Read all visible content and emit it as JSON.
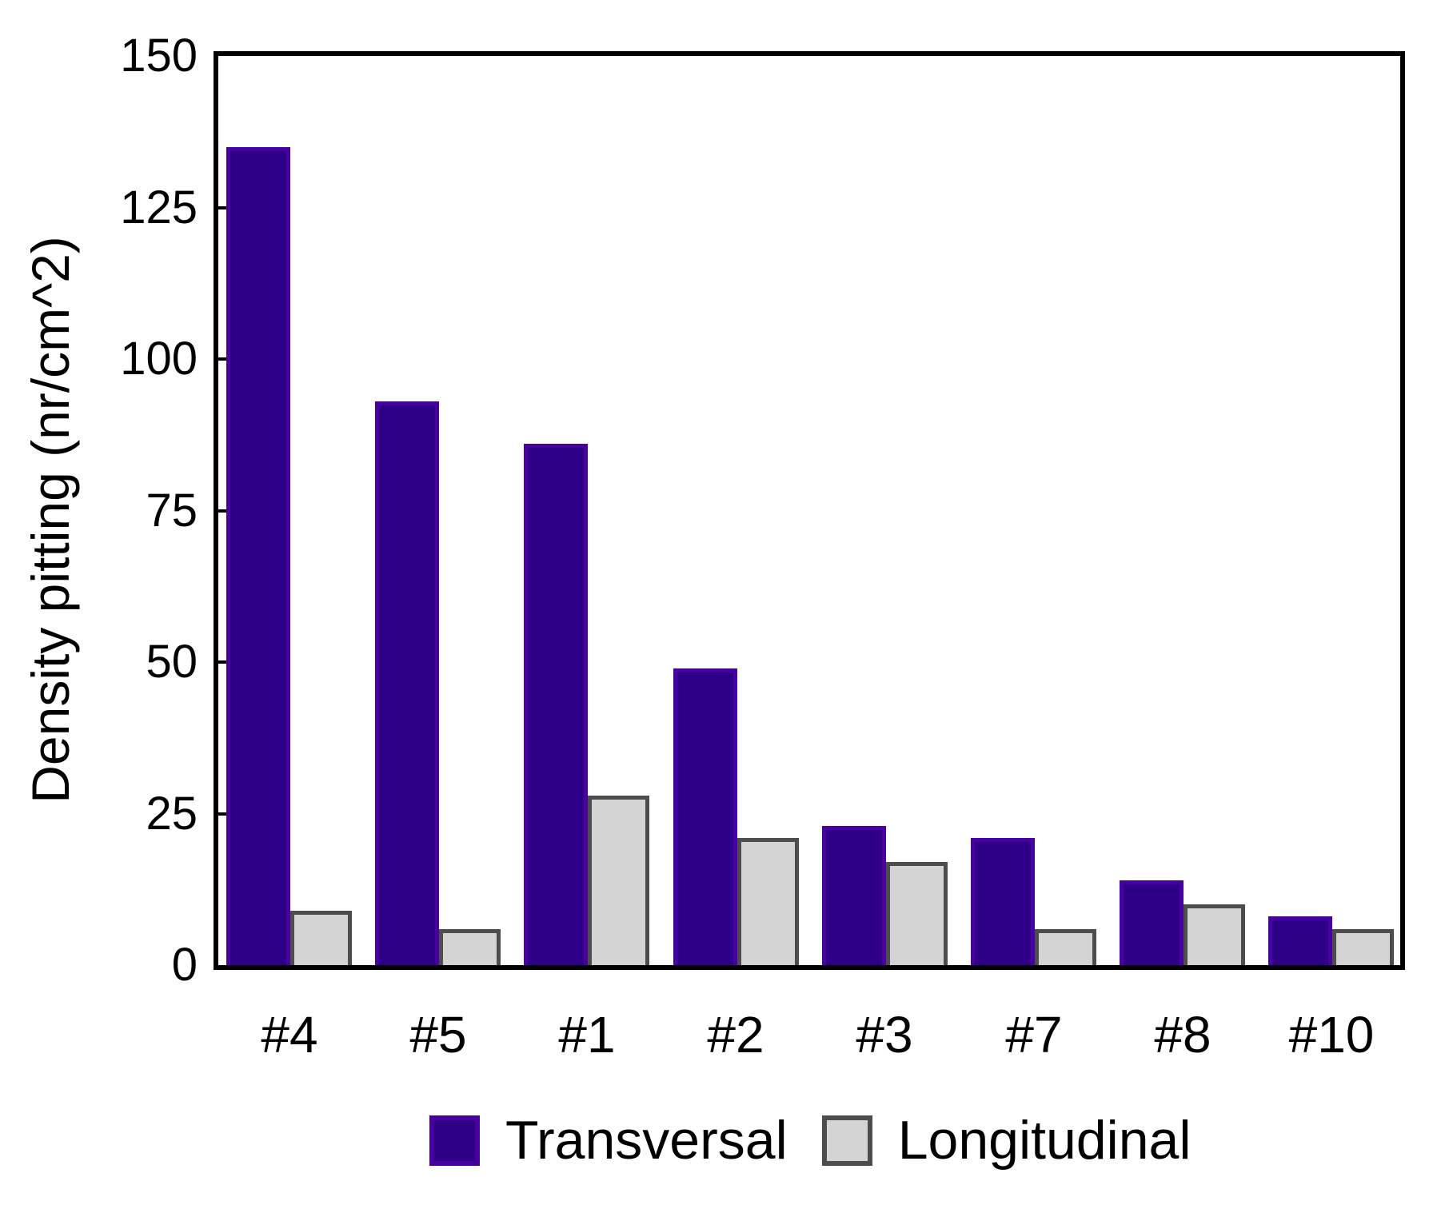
{
  "chart_data": {
    "type": "bar",
    "title": "",
    "xlabel": "",
    "ylabel": "Density pitting (nr/cm^2)",
    "categories": [
      "#4",
      "#5",
      "#1",
      "#2",
      "#3",
      "#7",
      "#8",
      "#10"
    ],
    "series": [
      {
        "name": "Transversal",
        "fill_color": "#2e0087",
        "border_color": "#4800a0",
        "values": [
          135,
          93,
          86,
          49,
          23,
          21,
          14,
          8
        ]
      },
      {
        "name": "Longitudinal",
        "fill_color": "#d4d4d4",
        "border_color": "#4d4d4d",
        "values": [
          9,
          6,
          28,
          21,
          17,
          6,
          10,
          6
        ]
      }
    ],
    "ylim": [
      0,
      150
    ],
    "yticks": [
      0,
      25,
      50,
      75,
      100,
      125,
      150
    ],
    "grid": "off",
    "legend_position": "bottom",
    "frame": "full-box",
    "frame_color": "#000000"
  }
}
